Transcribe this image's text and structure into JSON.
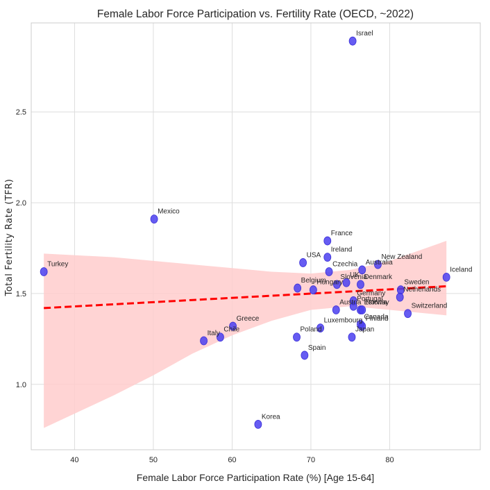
{
  "chart_data": {
    "type": "scatter",
    "title": "Female Labor Force Participation vs. Fertility Rate (OECD, ~2022)",
    "xlabel": "Female Labor Force Participation Rate (%) [Age 15-64]",
    "ylabel": "Total Fertility Rate (TFR)",
    "xlim": [
      34.5,
      91.5
    ],
    "ylim": [
      0.64,
      2.99
    ],
    "xticks": [
      40,
      50,
      60,
      70,
      80
    ],
    "yticks": [
      1.0,
      1.5,
      2.0,
      2.5
    ],
    "xtick_labels": [
      "40",
      "50",
      "60",
      "70",
      "80"
    ],
    "ytick_labels": [
      "1.0",
      "1.5",
      "2.0",
      "2.5"
    ],
    "grid": true,
    "legend": "none",
    "point_color": "#4b3ff0",
    "points": [
      {
        "label": "Israel",
        "x": 75.3,
        "y": 2.89
      },
      {
        "label": "Mexico",
        "x": 50.1,
        "y": 1.91
      },
      {
        "label": "Turkey",
        "x": 36.1,
        "y": 1.62
      },
      {
        "label": "France",
        "x": 72.1,
        "y": 1.79
      },
      {
        "label": "Ireland",
        "x": 72.1,
        "y": 1.7
      },
      {
        "label": "USA",
        "x": 69.0,
        "y": 1.67
      },
      {
        "label": "Czechia",
        "x": 72.3,
        "y": 1.62
      },
      {
        "label": "Australia",
        "x": 76.5,
        "y": 1.63
      },
      {
        "label": "New Zealand",
        "x": 78.5,
        "y": 1.66
      },
      {
        "label": "UK",
        "x": 74.5,
        "y": 1.56
      },
      {
        "label": "Slovenia",
        "x": 73.3,
        "y": 1.55
      },
      {
        "label": "Denmark",
        "x": 76.3,
        "y": 1.55
      },
      {
        "label": "Belgium",
        "x": 68.3,
        "y": 1.53
      },
      {
        "label": "Hungary",
        "x": 70.3,
        "y": 1.52
      },
      {
        "label": "Sweden",
        "x": 81.4,
        "y": 1.52
      },
      {
        "label": "Netherlands",
        "x": 81.3,
        "y": 1.48
      },
      {
        "label": "Iceland",
        "x": 87.2,
        "y": 1.59
      },
      {
        "label": "Germany",
        "x": 75.4,
        "y": 1.46
      },
      {
        "label": "Portugal",
        "x": 75.4,
        "y": 1.43
      },
      {
        "label": "Austria",
        "x": 73.2,
        "y": 1.41
      },
      {
        "label": "Estonia",
        "x": 76.3,
        "y": 1.41
      },
      {
        "label": "Norway",
        "x": 76.5,
        "y": 1.41
      },
      {
        "label": "Switzerland",
        "x": 82.3,
        "y": 1.39
      },
      {
        "label": "Canada",
        "x": 76.3,
        "y": 1.33
      },
      {
        "label": "Finland",
        "x": 76.5,
        "y": 1.32
      },
      {
        "label": "Luxembourg",
        "x": 71.2,
        "y": 1.31
      },
      {
        "label": "Japan",
        "x": 75.2,
        "y": 1.26
      },
      {
        "label": "Poland",
        "x": 68.2,
        "y": 1.26
      },
      {
        "label": "Spain",
        "x": 69.2,
        "y": 1.16
      },
      {
        "label": "Greece",
        "x": 60.1,
        "y": 1.32
      },
      {
        "label": "Chile",
        "x": 58.5,
        "y": 1.26
      },
      {
        "label": "Italy",
        "x": 56.4,
        "y": 1.24
      },
      {
        "label": "Korea",
        "x": 63.3,
        "y": 0.78
      }
    ],
    "regression": {
      "color": "#ff0000",
      "style": "dashed",
      "x": [
        36.1,
        87.2
      ],
      "y": [
        1.42,
        1.54
      ],
      "ci_color": "#ffcccc",
      "ci": [
        {
          "x": 36.1,
          "lower": 0.76,
          "upper": 1.72
        },
        {
          "x": 45.0,
          "lower": 0.94,
          "upper": 1.7
        },
        {
          "x": 50.0,
          "lower": 1.05,
          "upper": 1.68
        },
        {
          "x": 55.0,
          "lower": 1.17,
          "upper": 1.66
        },
        {
          "x": 60.0,
          "lower": 1.27,
          "upper": 1.64
        },
        {
          "x": 65.0,
          "lower": 1.35,
          "upper": 1.62
        },
        {
          "x": 70.0,
          "lower": 1.41,
          "upper": 1.61
        },
        {
          "x": 75.0,
          "lower": 1.43,
          "upper": 1.63
        },
        {
          "x": 80.0,
          "lower": 1.41,
          "upper": 1.68
        },
        {
          "x": 87.2,
          "lower": 1.38,
          "upper": 1.79
        }
      ]
    }
  }
}
